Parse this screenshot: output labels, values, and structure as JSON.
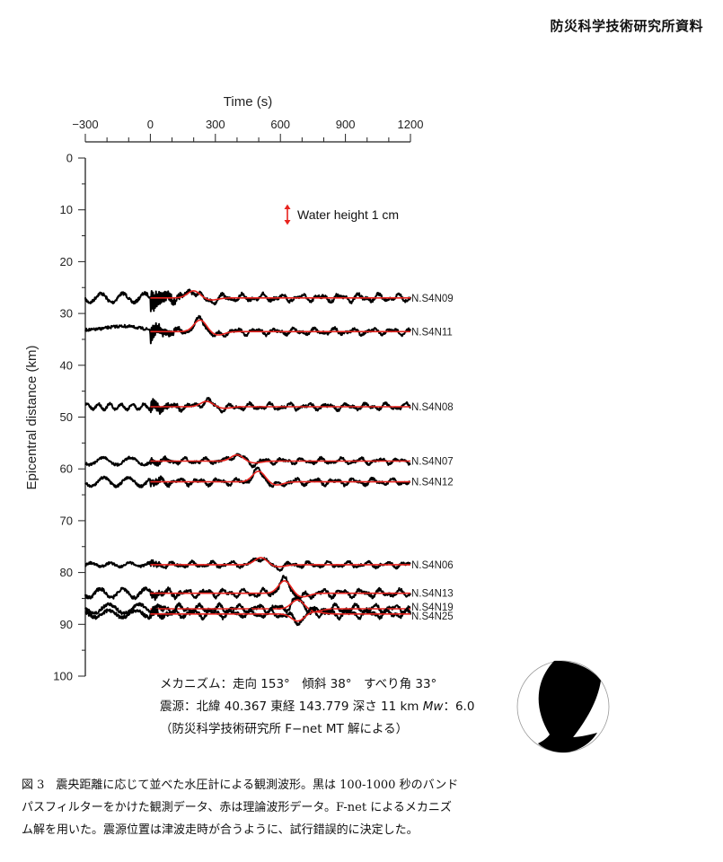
{
  "header": {
    "title": "防災科学技術研究所資料"
  },
  "chart_data": {
    "type": "line",
    "title": "",
    "xlabel": "Time (s)",
    "ylabel": "Epicentral distance (km)",
    "xlim": [
      -300,
      1200
    ],
    "ylim": [
      0,
      100
    ],
    "y_inverted": true,
    "x_axis_position": "top",
    "x_ticks": [
      "−300",
      "0",
      "300",
      "600",
      "900",
      "1200"
    ],
    "y_ticks": [
      "0",
      "10",
      "20",
      "30",
      "40",
      "50",
      "60",
      "70",
      "80",
      "90",
      "100"
    ],
    "grid": false,
    "legend": {
      "text": "Water height 1 cm",
      "symbol": "red-double-arrow",
      "position": "upper-right"
    },
    "series_styles": [
      {
        "name": "observed",
        "color": "#000000",
        "description": "band-pass filtered observed water-pressure waveform (100-1000 s)",
        "time_range": [
          -300,
          1200
        ]
      },
      {
        "name": "synthetic",
        "color": "#e8231e",
        "description": "theoretical waveform",
        "time_range": [
          0,
          1200
        ]
      }
    ],
    "stations": [
      {
        "name": "N.S4N09",
        "distance_km": 27,
        "peak_time_s": 200
      },
      {
        "name": "N.S4N11",
        "distance_km": 33.5,
        "peak_time_s": 230
      },
      {
        "name": "N.S4N08",
        "distance_km": 48,
        "peak_time_s": 260
      },
      {
        "name": "N.S4N07",
        "distance_km": 58.5,
        "peak_time_s": 400
      },
      {
        "name": "N.S4N12",
        "distance_km": 62.5,
        "peak_time_s": 500
      },
      {
        "name": "N.S4N06",
        "distance_km": 78.5,
        "peak_time_s": 510
      },
      {
        "name": "N.S4N13",
        "distance_km": 84,
        "peak_time_s": 620
      },
      {
        "name": "N.S4N19",
        "distance_km": 87,
        "peak_time_s": 680
      },
      {
        "name": "N.S4N25",
        "distance_km": 88,
        "peak_time_s": 680
      }
    ]
  },
  "mechanism": {
    "line1": "メカニズム：走向 153°　傾斜 38°　すべり角 33°",
    "line2_prefix": "震源：北緯 40.367  東経 143.779  深さ 11 km  ",
    "mw_label": "Mw",
    "mw_value": "：6.0",
    "line3": "（防災科学技術研究所 F−net MT 解による）",
    "strike": 153,
    "dip": 38,
    "rake": 33,
    "lat": 40.367,
    "lon": 143.779,
    "depth_km": 11,
    "mw": 6.0
  },
  "caption": {
    "line1": "図 3　震央距離に応じて並べた水圧計による観測波形。黒は 100-1000 秒のバンド",
    "line2": "パスフィルターをかけた観測データ、赤は理論波形データ。F-net によるメカニズ",
    "line3": "ム解を用いた。震源位置は津波走時が合うように、試行錯誤的に決定した。"
  },
  "colors": {
    "observed": "#000000",
    "synthetic": "#e8231e",
    "axis": "#222222"
  }
}
